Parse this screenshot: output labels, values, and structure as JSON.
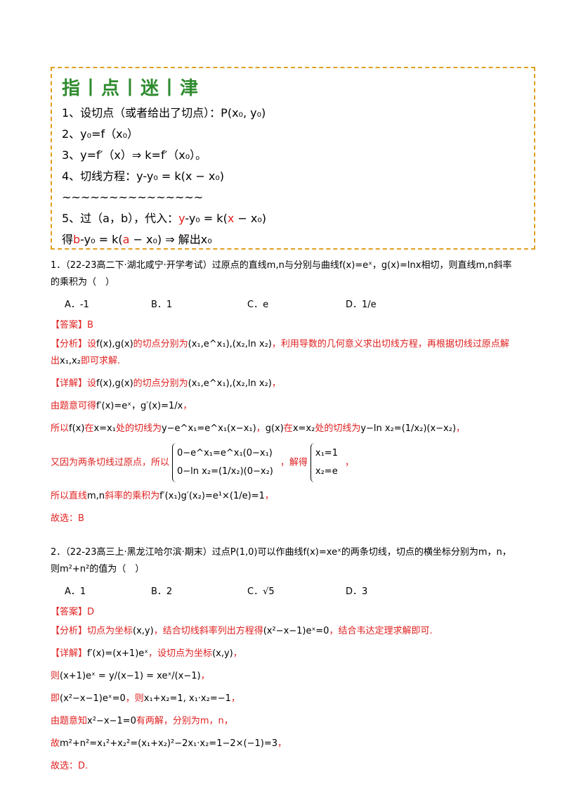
{
  "tips": {
    "title": "指丨点丨迷丨津",
    "lines": [
      [
        "1、设切点（或者给出了切点）：P(x₀, y₀)"
      ],
      [
        "2、y₀=f（x₀）"
      ],
      [
        "3、y=f′（x）⇒ k=f′（x₀）。"
      ],
      [
        "4、切线方程：y-y₀ = k(x − x₀)"
      ],
      [
        "~~~~~~~~~~~~~~~"
      ],
      [
        "5、过（a，b），代入：",
        "y",
        "-y₀ = k(",
        "x",
        " − x₀)"
      ],
      [
        "得",
        "b",
        "-y₀ = k(",
        "a",
        " − x₀) ⇒ 解出x₀"
      ]
    ]
  },
  "questions": [
    {
      "stem": "1．（22-23高二下·湖北咸宁·开学考试）过原点的直线m,n与分别与曲线f(x)=eˣ，g(x)=lnx相切，则直线m,n斜率的乘积为（　）",
      "options": [
        "A．-1",
        "B．1",
        "C．e",
        "D．1/e"
      ],
      "answer": "【答案】B",
      "analysis": [
        "【分析】设",
        "f(x),g(x)",
        "的切点分别为",
        "(x₁,e^x₁),(x₂,ln x₂)",
        "，利用导数的几何意义求出切线方程，再根据切线过原点解出",
        "x₁,x₂",
        "即可求解."
      ],
      "detail": [
        [
          "【详解】设",
          "f(x),g(x)",
          "的切点分别为",
          "(x₁,e^x₁),(x₂,ln x₂)",
          "，"
        ],
        [
          "由题意可得",
          "f′(x)=eˣ，g′(x)=1/x",
          "，"
        ],
        [
          "所以",
          "f(x)",
          "在",
          "x=x₁",
          "处的切线为",
          "y−e^x₁=e^x₁(x−x₁)",
          "，",
          "g(x)",
          "在",
          "x=x₂",
          "处的切线为",
          "y−ln x₂=(1/x₂)(x−x₂)",
          "，"
        ],
        [
          "又因为两条切线过原点，所以",
          [
            "0−e^x₁=e^x₁(0−x₁)",
            "0−ln x₂=(1/x₂)(0−x₂)"
          ],
          "，解得",
          [
            "x₁=1",
            "x₂=e"
          ],
          "，"
        ],
        [
          "所以直线",
          "m,n",
          "斜率的乘积为",
          "f′(x₁)g′(x₂)=e¹×(1/e)=1",
          "，"
        ],
        [
          "故选：B"
        ]
      ]
    },
    {
      "stem": "2．（22-23高三上·黑龙江哈尔滨·期末）过点P(1,0)可以作曲线f(x)=xeˣ的两条切线，切点的横坐标分别为m，n，则m²+n²的值为（　）",
      "options": [
        "A．1",
        "B．2",
        "C．√5",
        "D．3"
      ],
      "answer": "【答案】D",
      "analysis": [
        "【分析】切点为坐标",
        "(x,y)",
        "，结合切线斜率列出方程得",
        "(x²−x−1)eˣ=0",
        "，结合韦达定理求解即可."
      ],
      "detail": [
        [
          "【详解】",
          "f′(x)=(x+1)eˣ",
          "，设切点为坐标",
          "(x,y)",
          "，"
        ],
        [
          "则",
          "(x+1)eˣ = y/(x−1) = xeˣ/(x−1)",
          "，"
        ],
        [
          "即",
          "(x²−x−1)eˣ=0",
          "，则",
          "x₁+x₂=1, x₁·x₂=−1",
          "，"
        ],
        [
          "由题意知",
          "x²−x−1=0",
          "有两解，分别为m，n，"
        ],
        [
          "故",
          "m²+n²=x₁²+x₂²=(x₁+x₂)²−2x₁·x₂=1−2×(−1)=3",
          "，"
        ],
        [
          "故选：D."
        ]
      ]
    }
  ]
}
